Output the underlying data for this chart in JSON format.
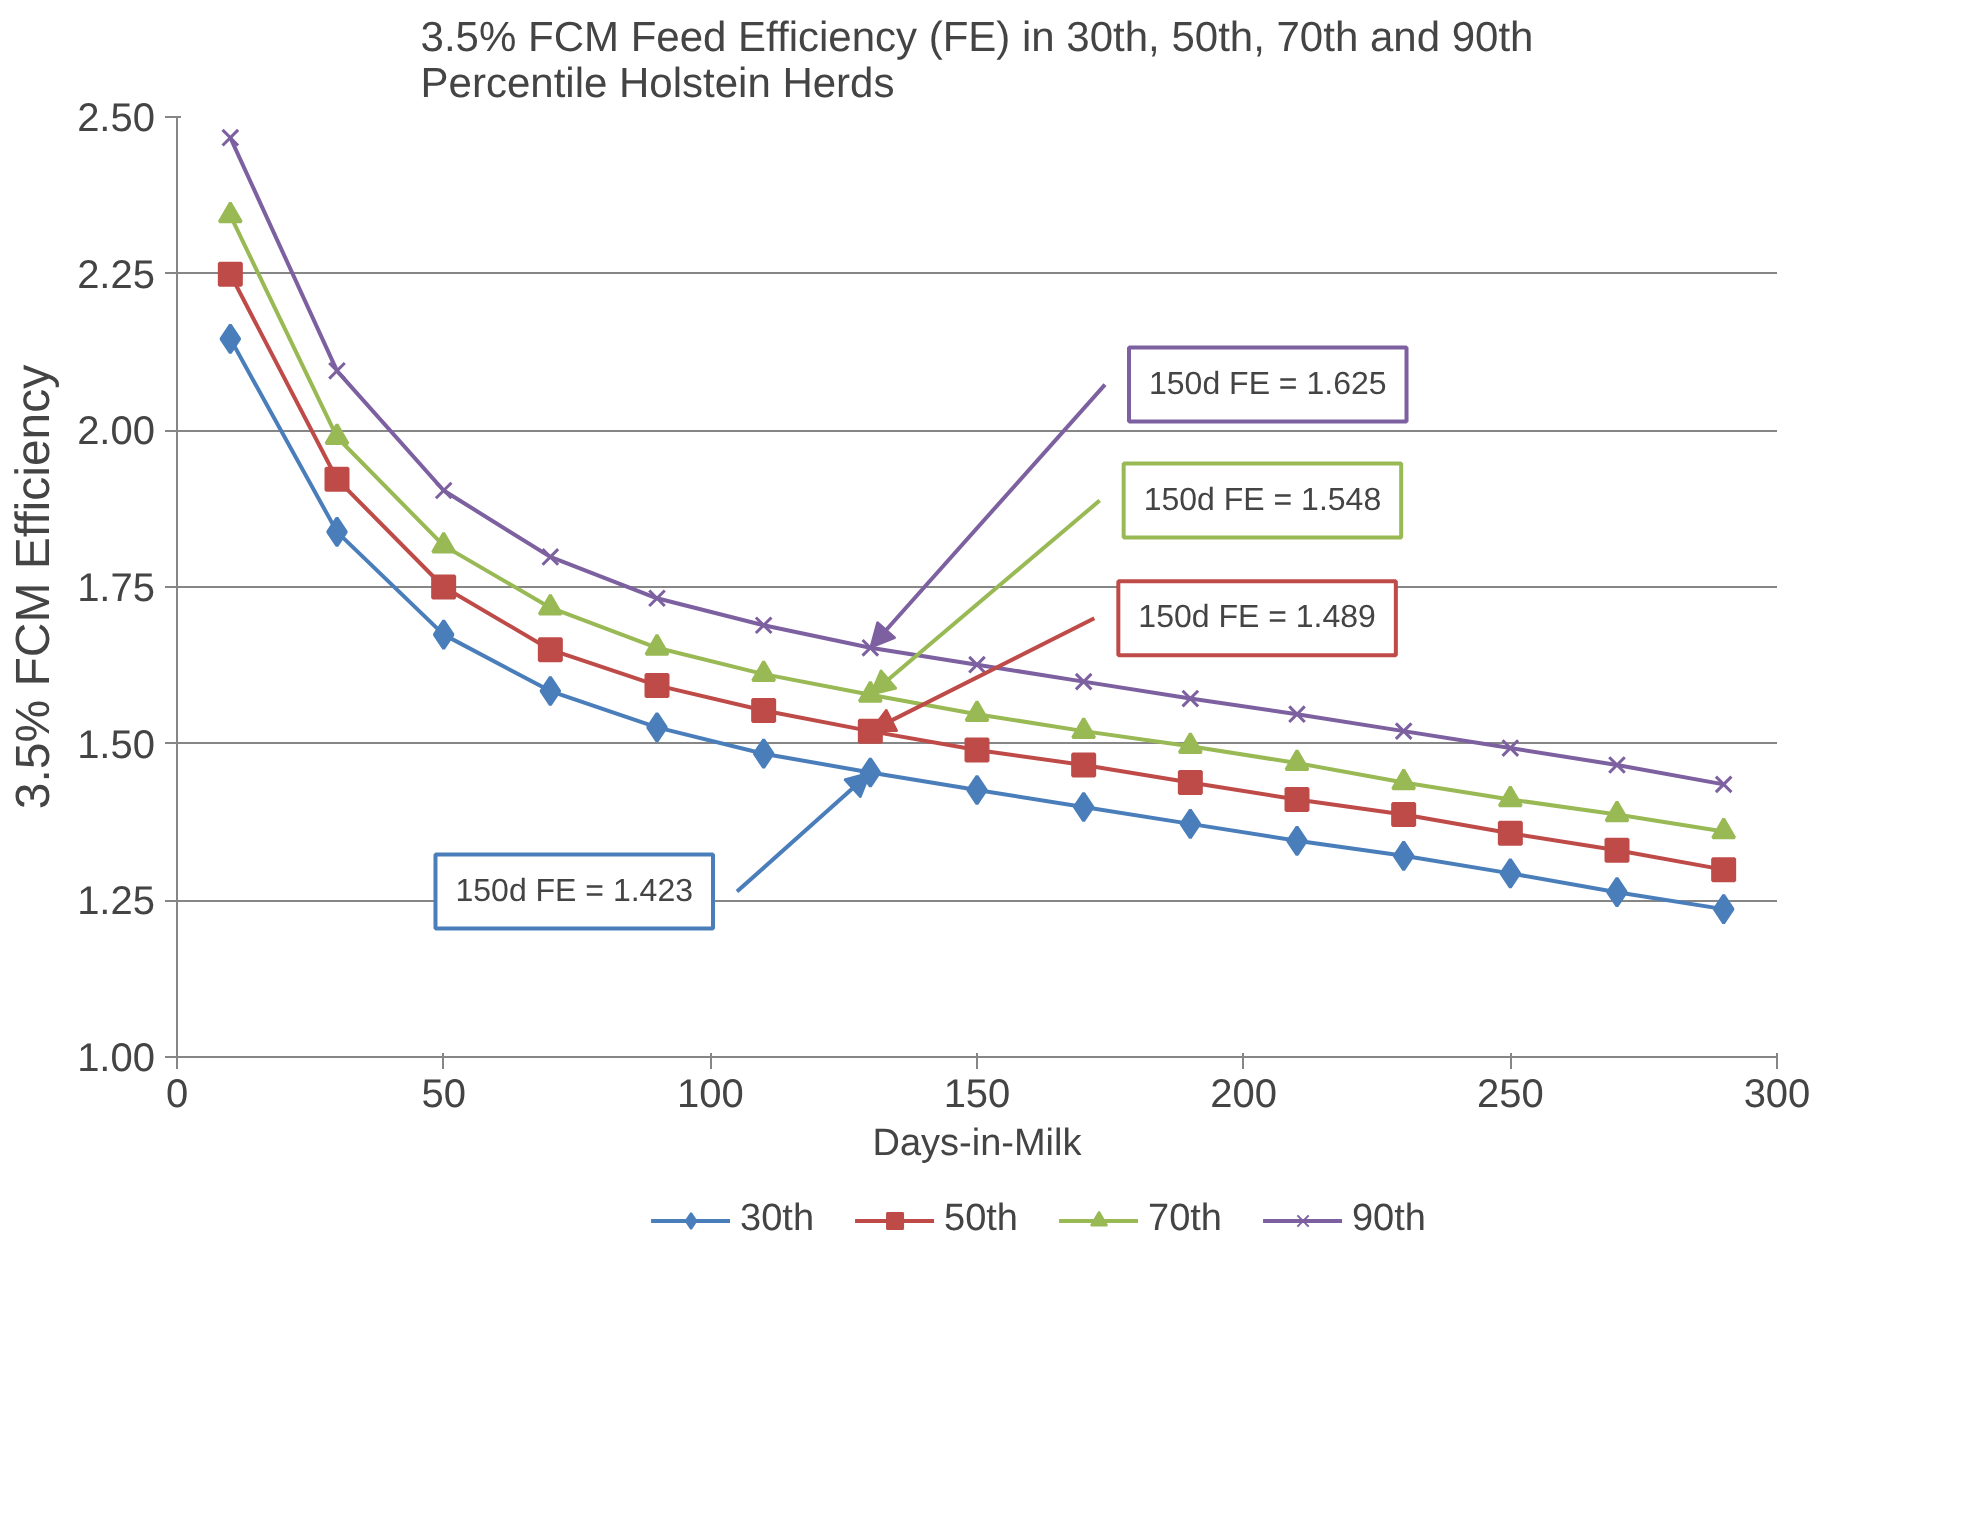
{
  "chart_data": {
    "type": "line",
    "title": "3.5% FCM Feed Efficiency (FE) in 30th, 50th, 70th and 90th Percentile Holstein Herds",
    "xlabel": "Days-in-Milk",
    "ylabel": "3.5% FCM Efficiency",
    "x": [
      10,
      30,
      50,
      70,
      90,
      110,
      130,
      150,
      170,
      190,
      210,
      230,
      250,
      270,
      290
    ],
    "series": [
      {
        "name": "30th",
        "color": "#4a7ebb",
        "marker": "diamond",
        "values": [
          2.146,
          1.838,
          1.674,
          1.584,
          1.526,
          1.484,
          1.454,
          1.426,
          1.399,
          1.372,
          1.345,
          1.321,
          1.293,
          1.263,
          1.236
        ]
      },
      {
        "name": "50th",
        "color": "#be4b48",
        "marker": "square",
        "values": [
          2.249,
          1.922,
          1.75,
          1.65,
          1.593,
          1.553,
          1.52,
          1.49,
          1.466,
          1.438,
          1.411,
          1.387,
          1.357,
          1.33,
          1.299
        ]
      },
      {
        "name": "70th",
        "color": "#98b954",
        "marker": "triangle",
        "values": [
          2.343,
          1.989,
          1.816,
          1.717,
          1.653,
          1.611,
          1.578,
          1.547,
          1.52,
          1.496,
          1.469,
          1.438,
          1.411,
          1.387,
          1.36
        ]
      },
      {
        "name": "90th",
        "color": "#7d60a0",
        "marker": "cross",
        "values": [
          2.467,
          2.095,
          1.904,
          1.798,
          1.732,
          1.689,
          1.653,
          1.626,
          1.599,
          1.572,
          1.547,
          1.52,
          1.493,
          1.466,
          1.435
        ]
      }
    ],
    "annotations": [
      "150d FE = 1.625",
      "150d FE = 1.548",
      "150d FE = 1.489",
      "150d FE = 1.423"
    ],
    "xlim": [
      0,
      300
    ],
    "xticks": [
      0,
      50,
      100,
      150,
      200,
      250,
      300
    ],
    "ylim": [
      1.0,
      2.5
    ],
    "yticks": [
      {
        "value": 1.0,
        "label": "1.00"
      },
      {
        "value": 1.25,
        "label": "1.25"
      },
      {
        "value": 1.5,
        "label": "1.50"
      },
      {
        "value": 1.75,
        "label": "1.75"
      },
      {
        "value": 2.0,
        "label": "2.00"
      },
      {
        "value": 2.25,
        "label": "2.25"
      },
      {
        "value": 2.5,
        "label": "2.50"
      }
    ],
    "grid": "y",
    "legend": "bottom",
    "line_style": "solid"
  }
}
